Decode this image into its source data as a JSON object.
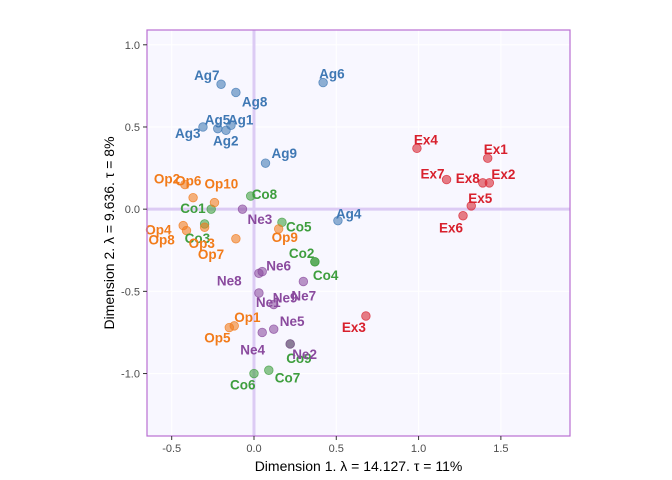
{
  "chart_data": {
    "type": "scatter",
    "xlabel": "Dimension 1.   λ = 14.127.  τ = 11%",
    "ylabel": "Dimension 2.   λ = 9.636.  τ = 8%",
    "xlim": [
      -0.65,
      1.92
    ],
    "ylim": [
      -1.38,
      1.09
    ],
    "x_ticks": [
      -0.5,
      0.0,
      0.5,
      1.0,
      1.5
    ],
    "x_tick_labels": [
      "-0.5",
      "0.0",
      "0.5",
      "1.0",
      "1.5"
    ],
    "y_ticks": [
      -1.0,
      -0.5,
      0.0,
      0.5,
      1.0
    ],
    "y_tick_labels": [
      "-1.0",
      "-0.5",
      "0.0",
      "0.5",
      "1.0"
    ],
    "grid": true,
    "reference_lines": {
      "x": 0,
      "y": 0
    },
    "colors": {
      "Ag": "#3F78B4",
      "Co": "#3E9E3E",
      "Ex": "#D8202D",
      "Ne": "#8A4A9E",
      "Op": "#F27B1A",
      "panel_bg": "#F8F7FF",
      "panel_border": "#B96FD1",
      "grid": "#FFFFFF",
      "ref_line": "#DCCBF4"
    },
    "series": [
      {
        "group": "Ag",
        "points": [
          {
            "label": "Ag1",
            "x": -0.14,
            "y": 0.51
          },
          {
            "label": "Ag2",
            "x": -0.17,
            "y": 0.48
          },
          {
            "label": "Ag3",
            "x": -0.31,
            "y": 0.5
          },
          {
            "label": "Ag4",
            "x": 0.51,
            "y": -0.07
          },
          {
            "label": "Ag5",
            "x": -0.22,
            "y": 0.49
          },
          {
            "label": "Ag6",
            "x": 0.42,
            "y": 0.77
          },
          {
            "label": "Ag7",
            "x": -0.2,
            "y": 0.76
          },
          {
            "label": "Ag8",
            "x": -0.11,
            "y": 0.71
          },
          {
            "label": "Ag9",
            "x": 0.07,
            "y": 0.28
          }
        ]
      },
      {
        "group": "Co",
        "points": [
          {
            "label": "Co1",
            "x": -0.26,
            "y": 0.0
          },
          {
            "label": "Co2",
            "x": 0.37,
            "y": -0.32
          },
          {
            "label": "Co3",
            "x": -0.3,
            "y": -0.09
          },
          {
            "label": "Co4",
            "x": 0.37,
            "y": -0.32
          },
          {
            "label": "Co5",
            "x": 0.17,
            "y": -0.08
          },
          {
            "label": "Co6",
            "x": 0.0,
            "y": -1.0
          },
          {
            "label": "Co7",
            "x": 0.09,
            "y": -0.98
          },
          {
            "label": "Co8",
            "x": -0.02,
            "y": 0.08
          },
          {
            "label": "Co9",
            "x": 0.22,
            "y": -0.82
          }
        ]
      },
      {
        "group": "Ex",
        "points": [
          {
            "label": "Ex1",
            "x": 1.42,
            "y": 0.31
          },
          {
            "label": "Ex2",
            "x": 1.43,
            "y": 0.16
          },
          {
            "label": "Ex3",
            "x": 0.68,
            "y": -0.65
          },
          {
            "label": "Ex4",
            "x": 0.99,
            "y": 0.37
          },
          {
            "label": "Ex5",
            "x": 1.32,
            "y": 0.02
          },
          {
            "label": "Ex6",
            "x": 1.27,
            "y": -0.04
          },
          {
            "label": "Ex7",
            "x": 1.17,
            "y": 0.18
          },
          {
            "label": "Ex8",
            "x": 1.39,
            "y": 0.16
          }
        ]
      },
      {
        "group": "Ne",
        "points": [
          {
            "label": "Ne1",
            "x": 0.03,
            "y": -0.51
          },
          {
            "label": "Ne2",
            "x": 0.22,
            "y": -0.82
          },
          {
            "label": "Ne3",
            "x": -0.07,
            "y": 0.0
          },
          {
            "label": "Ne4",
            "x": 0.05,
            "y": -0.75
          },
          {
            "label": "Ne5",
            "x": 0.12,
            "y": -0.73
          },
          {
            "label": "Ne6",
            "x": 0.05,
            "y": -0.38
          },
          {
            "label": "Ne7",
            "x": 0.3,
            "y": -0.44
          },
          {
            "label": "Ne8",
            "x": 0.03,
            "y": -0.39
          },
          {
            "label": "Ne9",
            "x": 0.12,
            "y": -0.58
          }
        ]
      },
      {
        "group": "Op",
        "points": [
          {
            "label": "Op1",
            "x": -0.12,
            "y": -0.71
          },
          {
            "label": "Op2",
            "x": -0.42,
            "y": 0.15
          },
          {
            "label": "Op3",
            "x": -0.3,
            "y": -0.11
          },
          {
            "label": "Op4",
            "x": -0.43,
            "y": -0.1
          },
          {
            "label": "Op5",
            "x": -0.15,
            "y": -0.72
          },
          {
            "label": "Op6",
            "x": -0.37,
            "y": 0.07
          },
          {
            "label": "Op7",
            "x": -0.11,
            "y": -0.18
          },
          {
            "label": "Op8",
            "x": -0.41,
            "y": -0.13
          },
          {
            "label": "Op9",
            "x": 0.15,
            "y": -0.12
          },
          {
            "label": "Op10",
            "x": -0.24,
            "y": 0.04
          }
        ]
      }
    ]
  }
}
